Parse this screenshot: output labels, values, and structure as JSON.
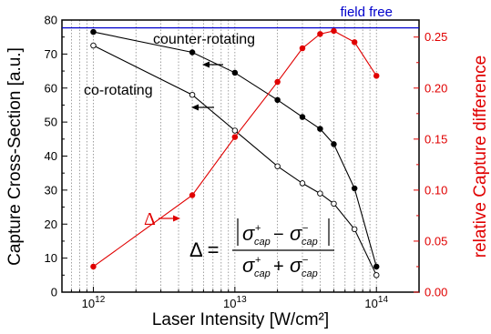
{
  "chart_data": {
    "type": "line",
    "x_scale": "log",
    "xlabel": "Laser Intensity [W/cm²]",
    "ylabel_left": "Capture Cross-Section [a.u.]",
    "ylabel_right": "relative Capture difference",
    "xlim": [
      600000000000.0,
      200000000000000.0
    ],
    "ylim_left": [
      0,
      80
    ],
    "ylim_right": [
      0,
      0.2667
    ],
    "x_ticks": [
      {
        "value": 1000000000000.0,
        "base": "10",
        "exp": "12"
      },
      {
        "value": 10000000000000.0,
        "base": "10",
        "exp": "13"
      },
      {
        "value": 100000000000000.0,
        "base": "10",
        "exp": "14"
      }
    ],
    "y_ticks_left": [
      "0",
      "10",
      "20",
      "30",
      "40",
      "50",
      "60",
      "70",
      "80"
    ],
    "y_ticks_right": [
      "0.00",
      "0.05",
      "0.10",
      "0.15",
      "0.20",
      "0.25"
    ],
    "grid": "vertical dotted at minor decades",
    "field_free": {
      "label": "field free",
      "value": 77.7,
      "color": "#0000cc"
    },
    "series": [
      {
        "name": "counter-rotating",
        "axis": "left",
        "marker": "filled-circle",
        "color": "#000000",
        "x": [
          1000000000000.0,
          5000000000000.0,
          10000000000000.0,
          20000000000000.0,
          30000000000000.0,
          40000000000000.0,
          50000000000000.0,
          70000000000000.0,
          100000000000000.0
        ],
        "y": [
          76.5,
          70.5,
          64.5,
          56.5,
          51.5,
          48,
          43.5,
          30.5,
          7.5
        ]
      },
      {
        "name": "co-rotating",
        "axis": "left",
        "marker": "open-circle",
        "color": "#000000",
        "x": [
          1000000000000.0,
          5000000000000.0,
          10000000000000.0,
          20000000000000.0,
          30000000000000.0,
          40000000000000.0,
          50000000000000.0,
          70000000000000.0,
          100000000000000.0
        ],
        "y": [
          72.5,
          58,
          47.5,
          37,
          32,
          29,
          26,
          18.5,
          5
        ]
      },
      {
        "name": "Δ",
        "axis": "right",
        "marker": "filled-circle",
        "color": "#e00000",
        "x": [
          1000000000000.0,
          5000000000000.0,
          10000000000000.0,
          20000000000000.0,
          30000000000000.0,
          40000000000000.0,
          50000000000000.0,
          70000000000000.0,
          100000000000000.0
        ],
        "y": [
          0.025,
          0.095,
          0.152,
          0.206,
          0.239,
          0.253,
          0.256,
          0.245,
          0.212
        ]
      }
    ],
    "annotations": {
      "counter": "counter-rotating",
      "co": "co-rotating",
      "delta": "Δ"
    },
    "formula": {
      "lhs": "Δ =",
      "sigma": "σ",
      "plus": "+",
      "minus": "−",
      "cap": "cap"
    }
  }
}
